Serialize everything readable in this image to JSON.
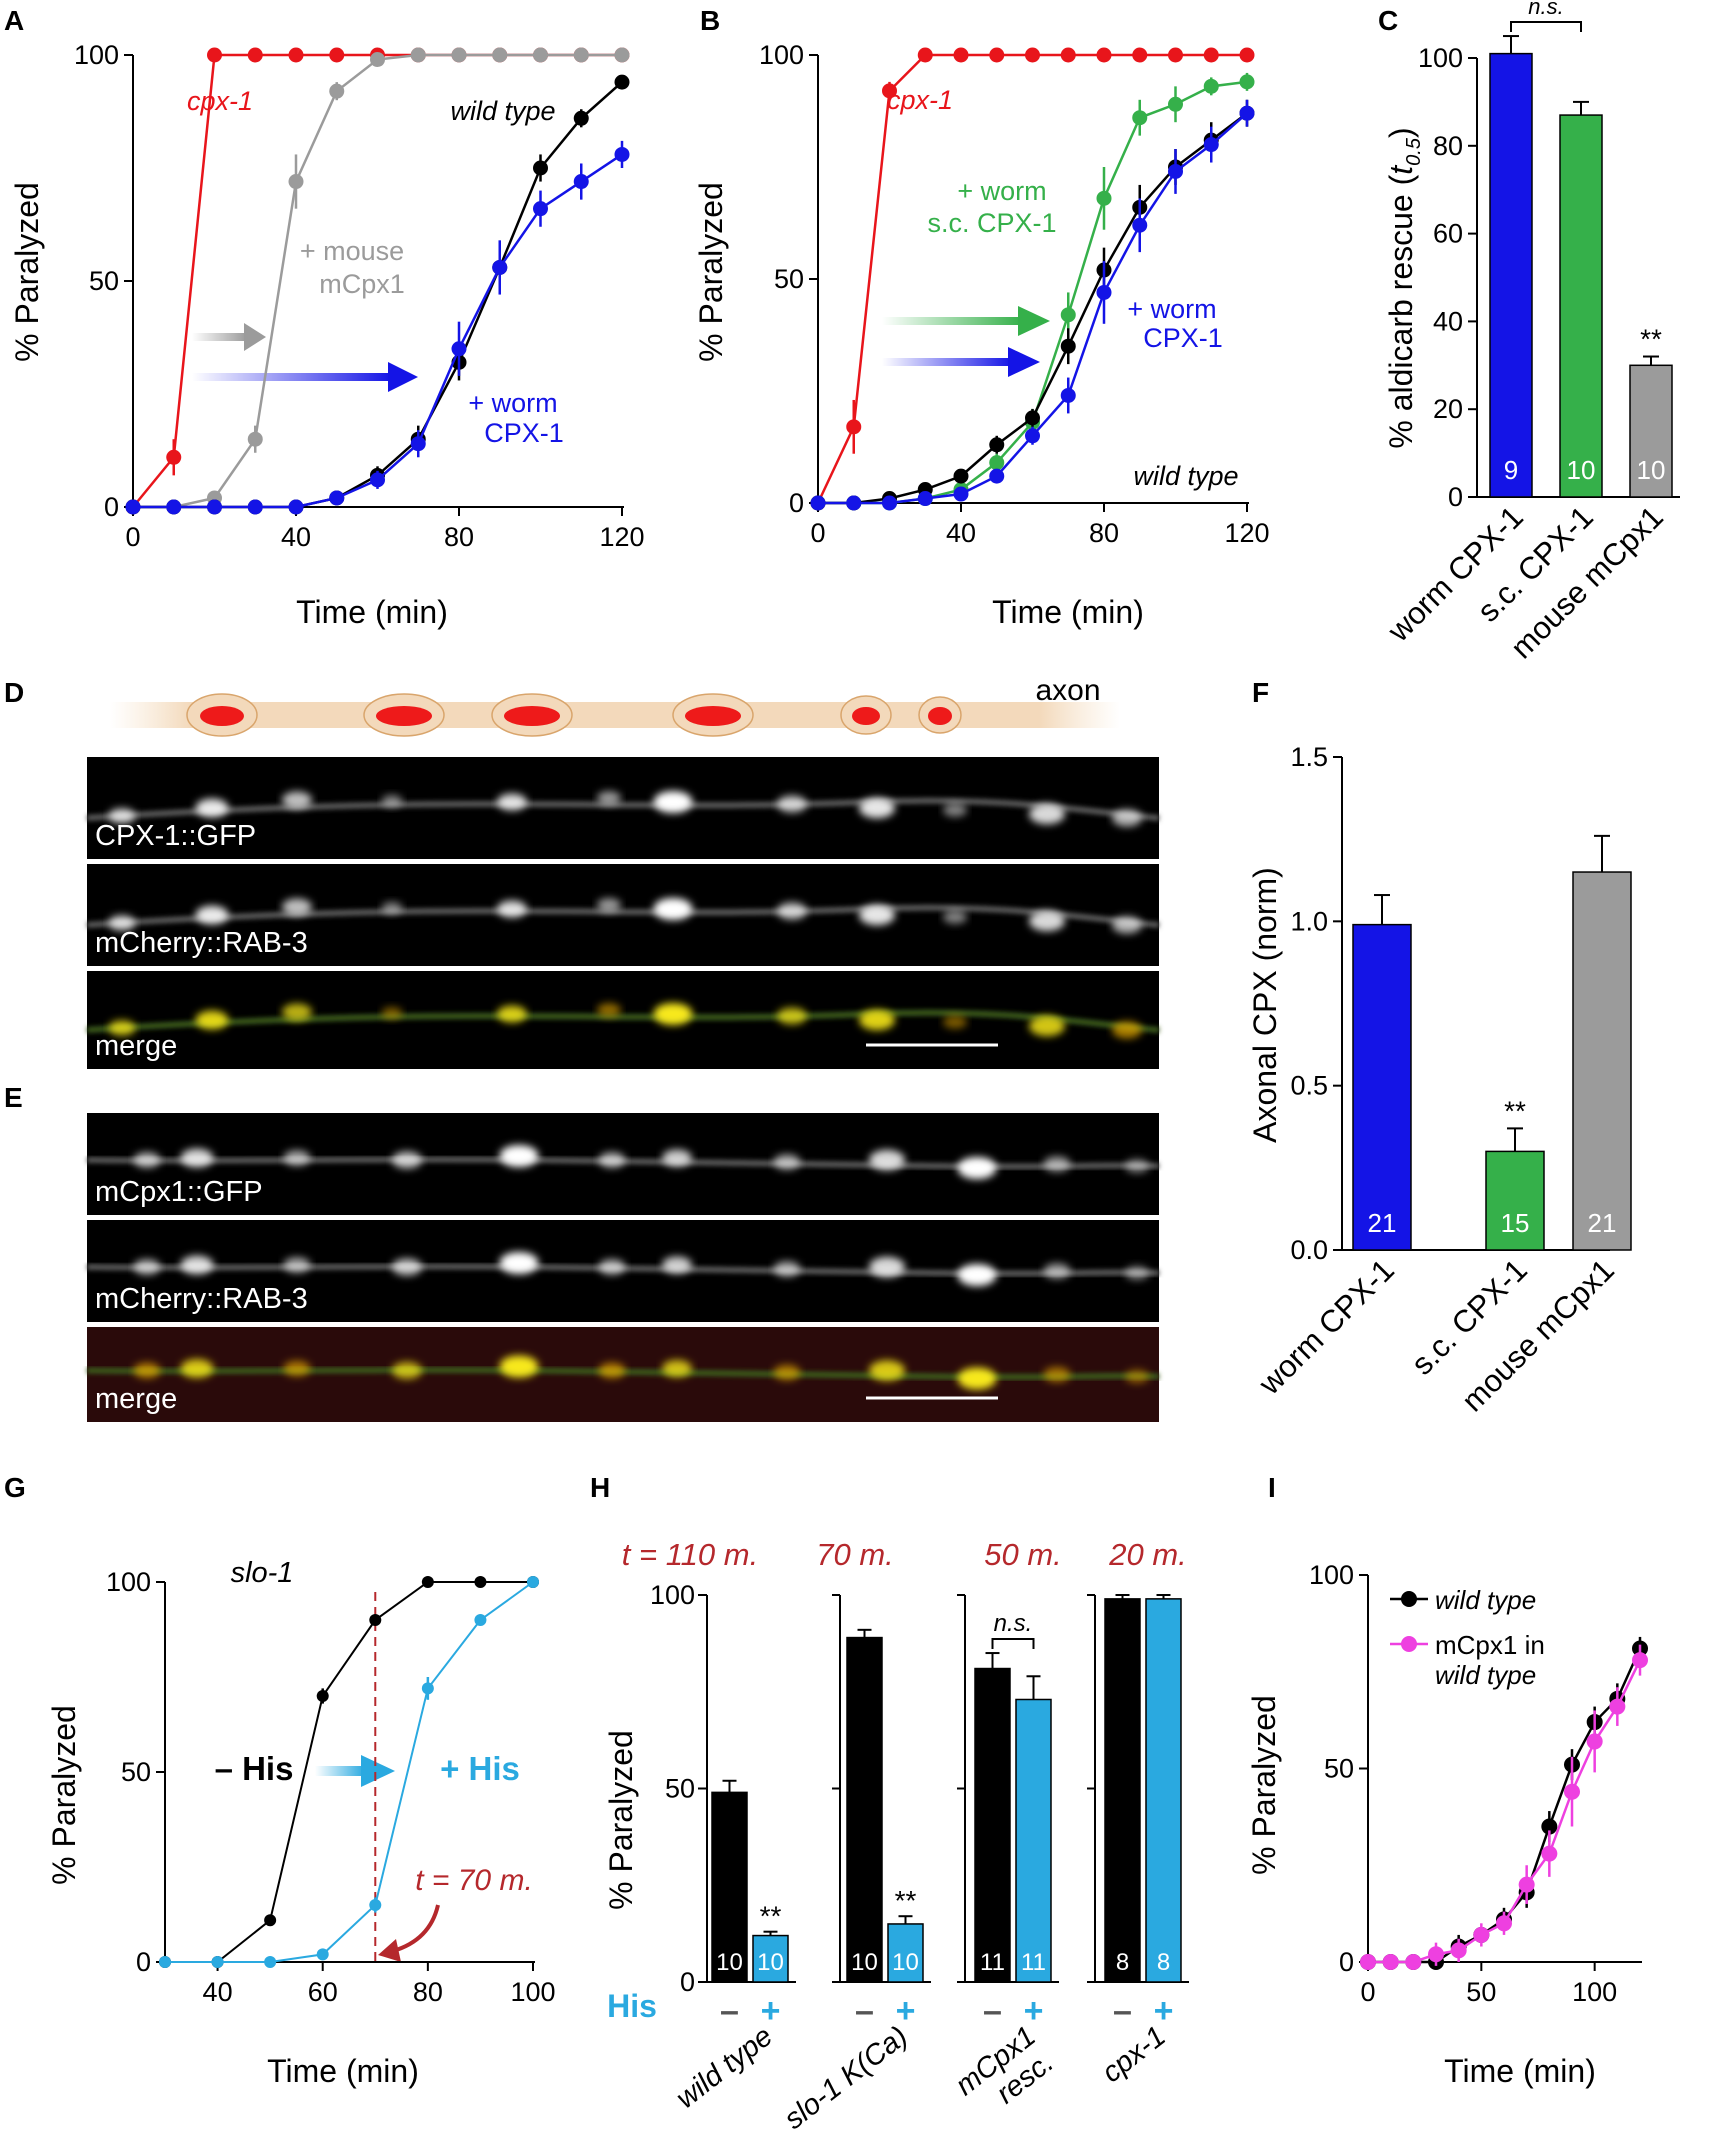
{
  "panels": {
    "A": "A",
    "B": "B",
    "C": "C",
    "D": "D",
    "E": "E",
    "F": "F",
    "G": "G",
    "H": "H",
    "I": "I"
  },
  "colors": {
    "red": "#e8151b",
    "gray": "#9b9b9b",
    "blue": "#1414e6",
    "black": "#000000",
    "green": "#35b04a",
    "cyan": "#2aa9e0",
    "magenta": "#ee40e0",
    "darkred": "#b5282c"
  },
  "chart_data": [
    {
      "id": "A",
      "type": "line",
      "xlabel": "Time (min)",
      "ylabel": "% Paralyzed",
      "xlim": [
        0,
        120
      ],
      "ylim": [
        0,
        100
      ],
      "xticks": [
        "0",
        "40",
        "80",
        "120"
      ],
      "yticks": [
        "0",
        "50",
        "100"
      ],
      "series": [
        {
          "name": "cpx-1",
          "color": "red",
          "x": [
            0,
            10,
            20,
            30,
            40,
            50,
            60,
            70,
            80,
            90,
            100,
            110,
            120
          ],
          "y": [
            0,
            11,
            100,
            100,
            100,
            100,
            100,
            100,
            100,
            100,
            100,
            100,
            100
          ],
          "err": [
            0,
            4,
            0,
            0,
            0,
            0,
            0,
            0,
            0,
            0,
            0,
            0,
            0
          ]
        },
        {
          "name": "+ mouse mCpx1",
          "color": "gray",
          "x": [
            0,
            10,
            20,
            30,
            40,
            50,
            60,
            70,
            80,
            90,
            100,
            110,
            120
          ],
          "y": [
            0,
            0,
            2,
            15,
            72,
            92,
            99,
            100,
            100,
            100,
            100,
            100,
            100
          ],
          "err": [
            0,
            0,
            1,
            3,
            6,
            2,
            0,
            0,
            0,
            0,
            0,
            0,
            0
          ]
        },
        {
          "name": "wild type",
          "color": "black",
          "x": [
            0,
            10,
            20,
            30,
            40,
            50,
            60,
            70,
            80,
            90,
            100,
            110,
            120
          ],
          "y": [
            0,
            0,
            0,
            0,
            0,
            2,
            7,
            15,
            32,
            53,
            75,
            86,
            94
          ],
          "err": [
            0,
            0,
            0,
            0,
            0,
            1,
            2,
            3,
            4,
            4,
            3,
            2,
            1
          ]
        },
        {
          "name": "+ worm CPX-1",
          "color": "blue",
          "x": [
            0,
            10,
            20,
            30,
            40,
            50,
            60,
            70,
            80,
            90,
            100,
            110,
            120
          ],
          "y": [
            0,
            0,
            0,
            0,
            0,
            2,
            6,
            14,
            35,
            53,
            66,
            72,
            78
          ],
          "err": [
            0,
            0,
            0,
            0,
            0,
            1,
            2,
            3,
            6,
            6,
            4,
            4,
            3
          ]
        }
      ],
      "annotations": {
        "cpx1": "cpx-1",
        "wildtype": "wild type",
        "mouse1": "+ mouse",
        "mouse2": "mCpx1",
        "worm1": "+ worm",
        "worm2": "CPX-1"
      }
    },
    {
      "id": "B",
      "type": "line",
      "xlabel": "Time (min)",
      "ylabel": "% Paralyzed",
      "xlim": [
        0,
        120
      ],
      "ylim": [
        0,
        100
      ],
      "xticks": [
        "0",
        "40",
        "80",
        "120"
      ],
      "yticks": [
        "0",
        "50",
        "100"
      ],
      "series": [
        {
          "name": "cpx-1",
          "color": "red",
          "x": [
            0,
            10,
            20,
            30,
            40,
            50,
            60,
            70,
            80,
            90,
            100,
            110,
            120
          ],
          "y": [
            0,
            17,
            92,
            100,
            100,
            100,
            100,
            100,
            100,
            100,
            100,
            100,
            100
          ],
          "err": [
            0,
            6,
            2,
            0,
            0,
            0,
            0,
            0,
            0,
            0,
            0,
            0,
            0
          ]
        },
        {
          "name": "+ worm s.c. CPX-1",
          "color": "green",
          "x": [
            0,
            10,
            20,
            30,
            40,
            50,
            60,
            70,
            80,
            90,
            100,
            110,
            120
          ],
          "y": [
            0,
            0,
            0,
            1,
            3,
            9,
            18,
            42,
            68,
            86,
            89,
            93,
            94
          ],
          "err": [
            0,
            0,
            0,
            0,
            1,
            2,
            3,
            5,
            7,
            4,
            4,
            2,
            2
          ]
        },
        {
          "name": "wild type",
          "color": "black",
          "x": [
            0,
            10,
            20,
            30,
            40,
            50,
            60,
            70,
            80,
            90,
            100,
            110,
            120
          ],
          "y": [
            0,
            0,
            1,
            3,
            6,
            13,
            19,
            35,
            52,
            66,
            75,
            81,
            87
          ],
          "err": [
            0,
            0,
            0,
            1,
            1,
            2,
            2,
            4,
            5,
            5,
            4,
            4,
            3
          ]
        },
        {
          "name": "+ worm CPX-1",
          "color": "blue",
          "x": [
            0,
            10,
            20,
            30,
            40,
            50,
            60,
            70,
            80,
            90,
            100,
            110,
            120
          ],
          "y": [
            0,
            0,
            0,
            1,
            2,
            6,
            15,
            24,
            47,
            62,
            74,
            80,
            87
          ],
          "err": [
            0,
            0,
            0,
            0,
            1,
            1,
            2,
            4,
            7,
            6,
            5,
            4,
            3
          ]
        }
      ],
      "annotations": {
        "cpx1": "cpx-1",
        "wildtype": "wild type",
        "green1": "+ worm",
        "green2": "s.c. CPX-1",
        "worm1": "+ worm",
        "worm2": "CPX-1"
      }
    },
    {
      "id": "C",
      "type": "bar",
      "ylabel": "% aldicarb rescue (t0.5)",
      "ylabel_main": "% aldicarb rescue (",
      "ylabel_var": "t",
      "ylabel_sub": "0.5",
      "ylabel_end": ")",
      "ylim": [
        0,
        100
      ],
      "yticks": [
        "0",
        "20",
        "40",
        "60",
        "80",
        "100"
      ],
      "categories": [
        "worm CPX-1",
        "s.c. CPX-1",
        "mouse mCpx1"
      ],
      "values": [
        101,
        87,
        30
      ],
      "err": [
        4,
        3,
        2
      ],
      "n": [
        "9",
        "10",
        "10"
      ],
      "colors": [
        "blue",
        "green",
        "gray"
      ],
      "stars": [
        "",
        "",
        "**"
      ],
      "bracket": "n.s."
    },
    {
      "id": "F",
      "type": "bar",
      "ylabel": "Axonal CPX (norm)",
      "ylim": [
        0,
        1.5
      ],
      "yticks": [
        "0.0",
        "0.5",
        "1.0",
        "1.5"
      ],
      "categories": [
        "worm CPX-1",
        "s.c. CPX-1",
        "mouse mCpx1"
      ],
      "values": [
        0.99,
        0.3,
        1.15
      ],
      "err": [
        0.09,
        0.07,
        0.11
      ],
      "n": [
        "21",
        "15",
        "21"
      ],
      "colors": [
        "blue",
        "green",
        "gray"
      ],
      "stars": [
        "",
        "**",
        ""
      ]
    },
    {
      "id": "G",
      "type": "line",
      "xlabel": "Time (min)",
      "ylabel": "% Paralyzed",
      "xlim": [
        30,
        100
      ],
      "ylim": [
        0,
        100
      ],
      "xticks": [
        "40",
        "60",
        "80",
        "100"
      ],
      "yticks": [
        "0",
        "50",
        "100"
      ],
      "series": [
        {
          "name": "– His",
          "color": "black",
          "x": [
            30,
            40,
            50,
            60,
            70,
            80,
            90,
            100
          ],
          "y": [
            0,
            0,
            11,
            70,
            90,
            100,
            100,
            100
          ],
          "err": [
            0,
            0,
            1,
            2,
            1,
            0,
            0,
            0
          ]
        },
        {
          "name": "+ His",
          "color": "cyan",
          "x": [
            30,
            40,
            50,
            60,
            70,
            80,
            90,
            100
          ],
          "y": [
            0,
            0,
            0,
            2,
            15,
            72,
            90,
            100
          ],
          "err": [
            0,
            0,
            0,
            1,
            2,
            3,
            1,
            0
          ]
        }
      ],
      "annotations": {
        "strain": "slo-1",
        "minus": "– His",
        "plus": "+ His",
        "t": "t = 70 m."
      },
      "vline": 70
    },
    {
      "id": "H",
      "type": "bar",
      "ylabel": "% Paralyzed",
      "ylim": [
        0,
        100
      ],
      "yticks": [
        "0",
        "50",
        "100"
      ],
      "his_label": "His",
      "minus": "–",
      "plus": "+",
      "groups": [
        {
          "name": "wild type",
          "time": "t = 110 m.",
          "values": [
            49,
            12
          ],
          "err": [
            3,
            1
          ],
          "n": [
            "10",
            "10"
          ],
          "stars": "**"
        },
        {
          "name": "slo-1 K(Ca)",
          "time": "70 m.",
          "values": [
            89,
            15
          ],
          "err": [
            2,
            2
          ],
          "n": [
            "10",
            "10"
          ],
          "stars": "**"
        },
        {
          "name": "mCpx1",
          "name2": "resc.",
          "time": "50 m.",
          "values": [
            81,
            73
          ],
          "err": [
            4,
            6
          ],
          "n": [
            "11",
            "11"
          ],
          "stars": "",
          "bracket": "n.s."
        },
        {
          "name": "cpx-1",
          "time": "20 m.",
          "values": [
            99,
            99
          ],
          "err": [
            1,
            1
          ],
          "n": [
            "8",
            "8"
          ],
          "stars": ""
        }
      ]
    },
    {
      "id": "I",
      "type": "line",
      "xlabel": "Time (min)",
      "ylabel": "% Paralyzed",
      "xlim": [
        0,
        120
      ],
      "ylim": [
        0,
        100
      ],
      "xticks": [
        "0",
        "50",
        "100"
      ],
      "yticks": [
        "0",
        "50",
        "100"
      ],
      "series": [
        {
          "name": "wild type",
          "color": "black",
          "x": [
            0,
            10,
            20,
            30,
            40,
            50,
            60,
            70,
            80,
            90,
            100,
            110,
            120
          ],
          "y": [
            0,
            0,
            0,
            0,
            4,
            7,
            11,
            18,
            35,
            51,
            62,
            68,
            81
          ],
          "err": [
            0,
            0,
            0,
            0,
            3,
            2,
            3,
            4,
            4,
            4,
            4,
            4,
            3
          ]
        },
        {
          "name": "mCpx1 in wild type",
          "color": "magenta",
          "x": [
            0,
            10,
            20,
            30,
            40,
            50,
            60,
            70,
            80,
            90,
            100,
            110,
            120
          ],
          "y": [
            0,
            0,
            0,
            2,
            3,
            7,
            10,
            20,
            28,
            44,
            57,
            66,
            78
          ],
          "err": [
            0,
            0,
            0,
            3,
            3,
            3,
            3,
            5,
            6,
            9,
            8,
            5,
            4
          ]
        }
      ],
      "legend": {
        "wt": "wild type",
        "m1": "mCpx1 in",
        "m2": "wild type"
      }
    }
  ],
  "micrographs": {
    "D": {
      "axon_label": "axon",
      "labels": [
        "CPX-1::GFP",
        "mCherry::RAB-3",
        "merge"
      ]
    },
    "E": {
      "labels": [
        "mCpx1::GFP",
        "mCherry::RAB-3",
        "merge"
      ]
    }
  }
}
